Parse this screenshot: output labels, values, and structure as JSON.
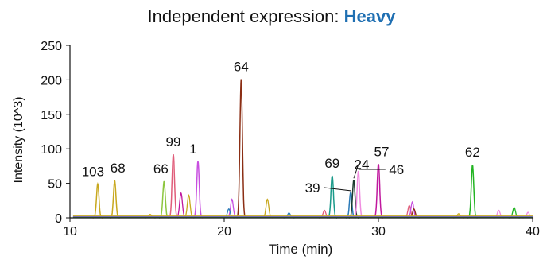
{
  "chart_data": {
    "type": "line",
    "title": "Independent expression:",
    "title_accent": "Heavy",
    "accent_color": "#1f6fb2",
    "xlabel": "Time (min)",
    "ylabel": "Intensity (10^3)",
    "xlim": [
      10,
      40
    ],
    "ylim": [
      0,
      250
    ],
    "xticks": [
      10,
      20,
      30,
      40
    ],
    "yticks": [
      0,
      50,
      100,
      150,
      200,
      250
    ],
    "grid": false,
    "peaks": [
      {
        "label": "103",
        "x": 11.8,
        "y": 49,
        "color": "#c8a81e"
      },
      {
        "label": "68",
        "x": 12.9,
        "y": 54,
        "color": "#c8a81e"
      },
      {
        "label": "66",
        "x": 16.1,
        "y": 53,
        "color": "#8dc63f"
      },
      {
        "label": "99",
        "x": 16.7,
        "y": 92,
        "color": "#e05d7a"
      },
      {
        "label": "1",
        "x": 18.3,
        "y": 82,
        "color": "#c84fe0"
      },
      {
        "label": "64",
        "x": 21.1,
        "y": 201,
        "color": "#8b2e14"
      },
      {
        "label": "69",
        "x": 27.0,
        "y": 61,
        "color": "#1a9a8a"
      },
      {
        "label": "39",
        "x": 28.2,
        "y": 37,
        "color": "#2a7ab8"
      },
      {
        "label": "24",
        "x": 28.4,
        "y": 55,
        "color": "#1c3a2e"
      },
      {
        "label": "46",
        "x": 28.7,
        "y": 68,
        "color": "#f08ce0"
      },
      {
        "label": "57",
        "x": 30.0,
        "y": 78,
        "color": "#c0189e"
      },
      {
        "label": "62",
        "x": 36.1,
        "y": 77,
        "color": "#22b422"
      }
    ],
    "minor_peaks": [
      {
        "x": 15.2,
        "y": 5,
        "color": "#c8a81e"
      },
      {
        "x": 17.2,
        "y": 36,
        "color": "#c0189e"
      },
      {
        "x": 17.7,
        "y": 33,
        "color": "#c8a81e"
      },
      {
        "x": 20.5,
        "y": 27,
        "color": "#c84fe0"
      },
      {
        "x": 20.3,
        "y": 13,
        "color": "#2a7ab8"
      },
      {
        "x": 22.8,
        "y": 27,
        "color": "#c8a81e"
      },
      {
        "x": 24.2,
        "y": 7,
        "color": "#2a7ab8"
      },
      {
        "x": 26.5,
        "y": 11,
        "color": "#e05d7a"
      },
      {
        "x": 32.0,
        "y": 18,
        "color": "#e05d7a"
      },
      {
        "x": 32.2,
        "y": 23,
        "color": "#c84fe0"
      },
      {
        "x": 32.3,
        "y": 13,
        "color": "#8b2e14"
      },
      {
        "x": 35.2,
        "y": 6,
        "color": "#c8a81e"
      },
      {
        "x": 37.8,
        "y": 11,
        "color": "#f08ce0"
      },
      {
        "x": 38.8,
        "y": 15,
        "color": "#22b422"
      },
      {
        "x": 39.7,
        "y": 8,
        "color": "#f08ce0"
      }
    ]
  }
}
